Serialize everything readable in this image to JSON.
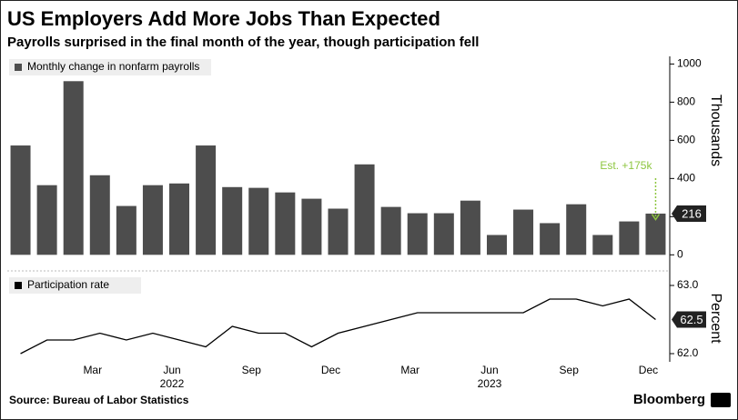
{
  "chart_data": [
    {
      "type": "bar",
      "title": "US Employers Add More Jobs Than Expected",
      "subtitle": "Payrolls surprised in the final month of the year, though participation fell",
      "legend_label": "Monthly change in nonfarm payrolls",
      "y_label": "Thousands",
      "color": "#4d4d4d",
      "categories": [
        null,
        null,
        null,
        "Mar",
        null,
        null,
        "Jun",
        null,
        null,
        "Sep",
        null,
        null,
        "Dec",
        null,
        null,
        "Mar",
        null,
        null,
        "Jun",
        null,
        null,
        "Sep",
        null,
        null,
        "Dec"
      ],
      "x_groups": [
        "2022",
        "2023"
      ],
      "values": [
        573,
        365,
        910,
        417,
        256,
        365,
        374,
        573,
        355,
        351,
        327,
        294,
        242,
        474,
        251,
        218,
        218,
        284,
        104,
        237,
        166,
        265,
        104,
        175,
        216
      ],
      "ylim": [
        -70,
        1040
      ],
      "yticks": [
        0,
        200,
        400,
        600,
        800,
        1000
      ],
      "estimate": 175,
      "estimate_label": "Est. +175k"
    },
    {
      "type": "line",
      "legend_label": "Participation rate",
      "y_label": "Percent",
      "color": "#000000",
      "values": [
        62.0,
        62.2,
        62.2,
        62.3,
        62.2,
        62.3,
        62.2,
        62.1,
        62.4,
        62.3,
        62.3,
        62.1,
        62.3,
        62.4,
        62.5,
        62.6,
        62.6,
        62.6,
        62.6,
        62.6,
        62.8,
        62.8,
        62.7,
        62.8,
        62.5
      ],
      "ylim": [
        61.88,
        63.16
      ],
      "yticks": [
        {
          "value": 62,
          "label": "62.0"
        },
        {
          "value": 63,
          "label": "63.0"
        }
      ],
      "source": "Source: Bureau of Labor Statistics",
      "brand": "Bloomberg"
    }
  ]
}
